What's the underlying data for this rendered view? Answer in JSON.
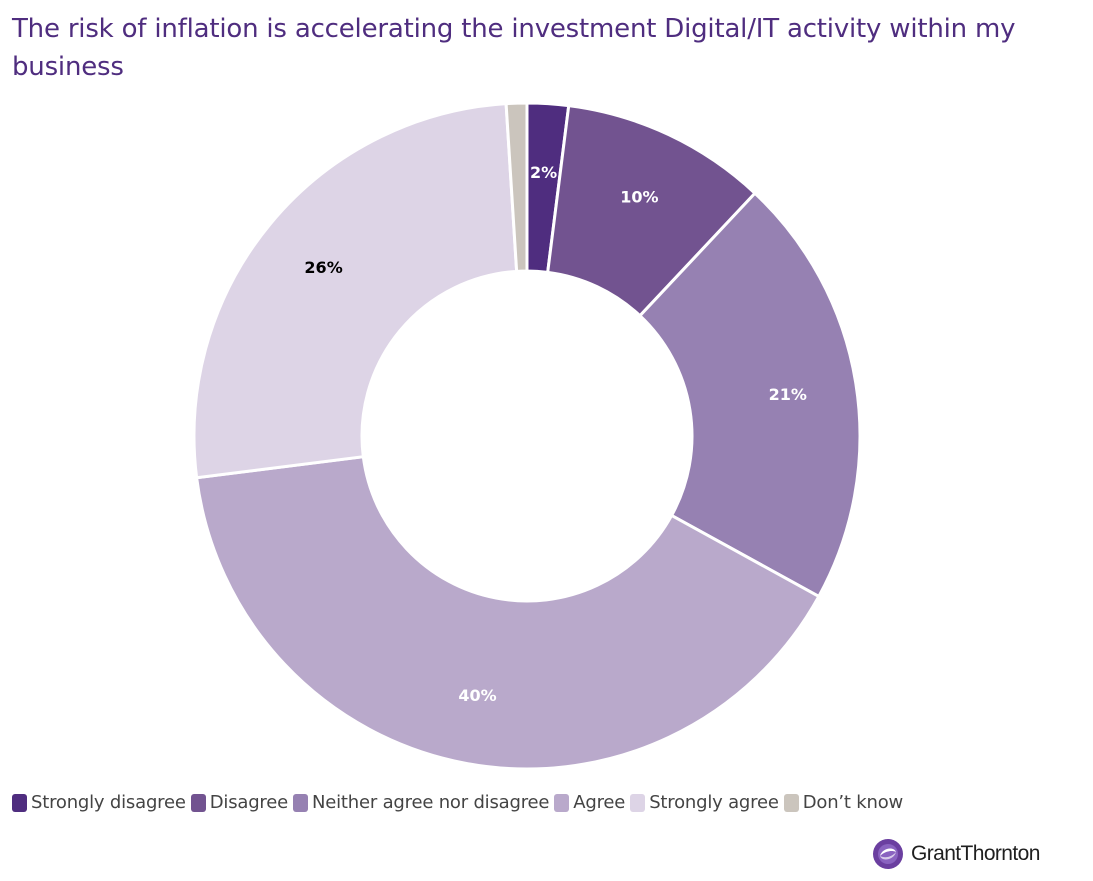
{
  "chart_data": {
    "type": "pie",
    "variant": "donut",
    "title": "The risk of inflation is accelerating the investment Digital/IT activity within my business",
    "categories": [
      "Strongly disagree",
      "Disagree",
      "Neither agree nor disagree",
      "Agree",
      "Strongly agree",
      "Don’t know"
    ],
    "values": [
      2,
      10,
      21,
      40,
      26,
      1
    ],
    "data_labels": [
      "2%",
      "10%",
      "21%",
      "40%",
      "26%",
      ""
    ],
    "colors": [
      "#4f2d7f",
      "#725390",
      "#9681b2",
      "#b9a9cb",
      "#ddd4e6",
      "#cbc5bd"
    ],
    "label_colors": [
      "#ffffff",
      "#ffffff",
      "#ffffff",
      "#ffffff",
      "#000000",
      "#000000"
    ],
    "legend_position": "bottom-left"
  },
  "branding": {
    "logo_text": "GrantThornton",
    "logo_color": "#6b3fa0"
  }
}
